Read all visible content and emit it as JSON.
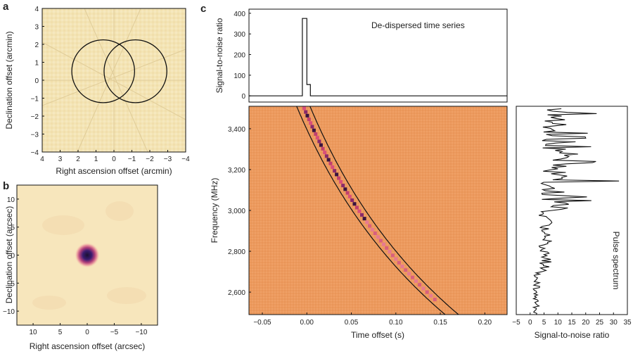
{
  "panels": {
    "a": "a",
    "b": "b",
    "c": "c"
  },
  "chart_data": [
    {
      "type": "other",
      "panel": "a",
      "xlabel": "Right ascension offset (arcmin)",
      "ylabel": "Declination offset (arcmin)",
      "xticks": [
        "4",
        "3",
        "2",
        "1",
        "0",
        "−1",
        "−2",
        "−3",
        "−4"
      ],
      "yticks": [
        "4",
        "3",
        "2",
        "1",
        "0",
        "−1",
        "−2",
        "−3",
        "−4"
      ],
      "xlim": [
        4,
        -4
      ],
      "ylim": [
        -4,
        4
      ],
      "circles": [
        {
          "cx": 0.6,
          "cy": 0.5,
          "r": 1.75
        },
        {
          "cx": -1.2,
          "cy": 0.5,
          "r": 1.75
        }
      ],
      "background": "#f3e4b4"
    },
    {
      "type": "heatmap",
      "panel": "b",
      "xlabel": "Right ascension offset (arcsec)",
      "ylabel": "Declination offset (arcsec)",
      "xticks": [
        "10",
        "5",
        "0",
        "−5",
        "−10"
      ],
      "yticks": [
        "10",
        "5",
        "0",
        "−5",
        "−10"
      ],
      "xlim": [
        13,
        -13
      ],
      "ylim": [
        -12.5,
        12.5
      ],
      "source": {
        "x": 0,
        "y": 0
      }
    },
    {
      "type": "line",
      "panel": "c-top",
      "ylabel": "Signal-to-noise ratio",
      "annotation": "De-dispersed time series",
      "yticks": [
        "0",
        "100",
        "200",
        "300",
        "400"
      ],
      "ylim": [
        -30,
        420
      ],
      "xlim": [
        -0.065,
        0.225
      ],
      "series": [
        {
          "x": [
            -0.065,
            -0.005,
            -0.005,
            0.0,
            0.0,
            0.004,
            0.004,
            0.225
          ],
          "y": [
            0,
            0,
            375,
            375,
            55,
            55,
            0,
            0
          ]
        }
      ]
    },
    {
      "type": "heatmap",
      "panel": "c-main",
      "xlabel": "Time offset (s)",
      "ylabel": "Frequency (MHz)",
      "xticks": [
        "−0.05",
        "0.00",
        "0.05",
        "0.10",
        "0.15",
        "0.20"
      ],
      "yticks": [
        "2,600",
        "2,800",
        "3,000",
        "3,200",
        "3,400"
      ],
      "xlim": [
        -0.065,
        0.225
      ],
      "ylim": [
        2490,
        3510
      ],
      "background": "#ec9a5e",
      "pulse_track_ref_freq_mhz": 3500,
      "pulse_track_ref_time_s": -0.003,
      "dispersion_scale": 0.17,
      "band_width_s": 0.015
    },
    {
      "type": "line",
      "panel": "c-side",
      "xlabel": "Signal-to-noise ratio",
      "annotation": "Pulse spectrum",
      "xticks": [
        "−5",
        "0",
        "5",
        "10",
        "15",
        "20",
        "25",
        "30",
        "35"
      ],
      "xlim": [
        -5,
        35
      ],
      "ylim": [
        2490,
        3510
      ]
    }
  ]
}
